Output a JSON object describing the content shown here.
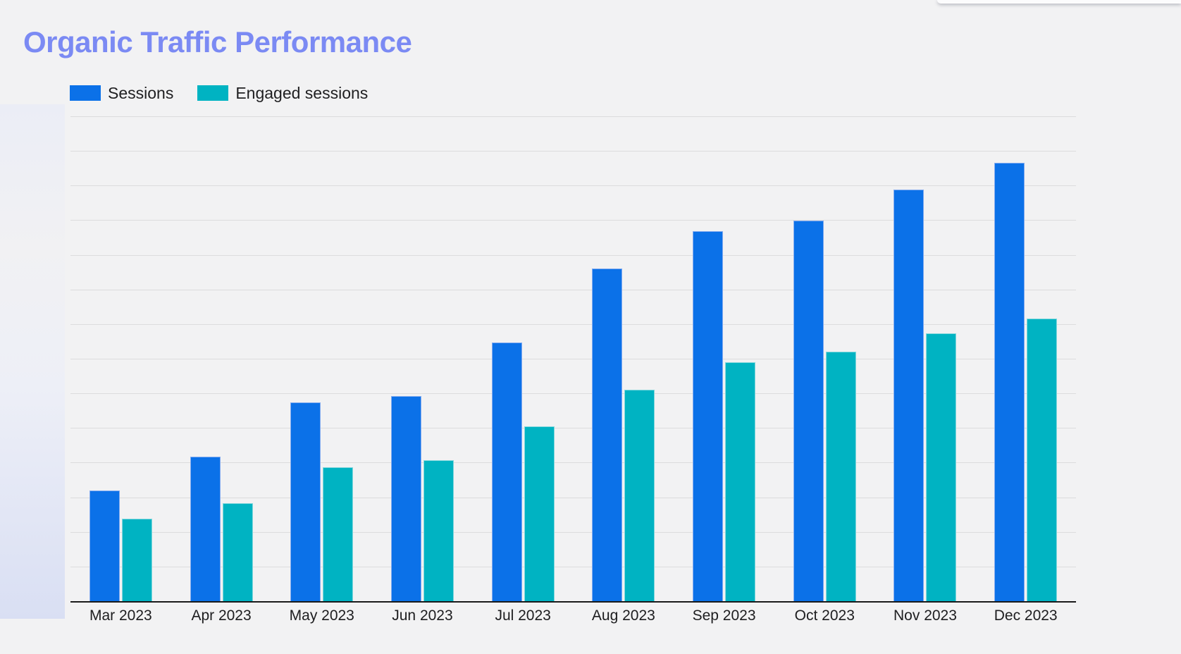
{
  "page": {
    "background_color": "#f2f2f3",
    "axis_line_color": "#1a1a1a",
    "gridline_color": "#dcdcdd",
    "text_color": "#1f1f21"
  },
  "header": {
    "title": "Organic Traffic Performance",
    "title_color": "#7b8af3"
  },
  "legend": {
    "position": "top-left",
    "items": [
      {
        "label": "Sessions",
        "color": "#0b71e8"
      },
      {
        "label": "Engaged sessions",
        "color": "#00b3c2"
      }
    ]
  },
  "chart_data": {
    "type": "bar",
    "title": "Organic Traffic Performance",
    "categories": [
      "Mar 2023",
      "Apr 2023",
      "May 2023",
      "Jun 2023",
      "Jul 2023",
      "Aug 2023",
      "Sep 2023",
      "Oct 2023",
      "Nov 2023",
      "Dec 2023"
    ],
    "series": [
      {
        "name": "Sessions",
        "color": "#0b71e8",
        "values": [
          3.19,
          4.18,
          5.73,
          5.92,
          7.47,
          9.61,
          10.68,
          10.99,
          11.89,
          12.65
        ]
      },
      {
        "name": "Engaged sessions",
        "color": "#00b3c2",
        "values": [
          2.39,
          2.83,
          3.86,
          4.08,
          5.04,
          6.11,
          6.89,
          7.21,
          7.74,
          8.16
        ]
      }
    ],
    "xlabel": "",
    "ylabel": "",
    "ylim": [
      0,
      14
    ],
    "y_unit_note": "y-axis has no visible numeric labels; values are heights measured in gridline intervals",
    "gridline_intervals": 14,
    "grid": "horizontal",
    "legend_position": "top-left"
  }
}
